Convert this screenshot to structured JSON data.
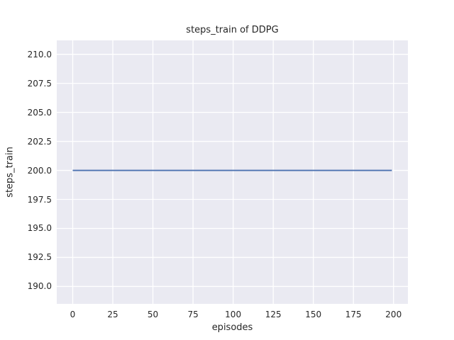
{
  "figure": {
    "background": "#FFFFFF"
  },
  "chart_data": {
    "type": "line",
    "title": "steps_train of DDPG",
    "xlabel": "episodes",
    "ylabel": "steps_train",
    "x": [
      0,
      199
    ],
    "series": [
      {
        "name": "steps_train",
        "values": [
          200,
          200
        ]
      }
    ],
    "line_color": "#4C72B0",
    "line_width": 1.8,
    "xlim": [
      -9.95,
      208.95
    ],
    "ylim": [
      188.5,
      211.2
    ],
    "xticks": {
      "values": [
        0,
        25,
        50,
        75,
        100,
        125,
        150,
        175,
        200
      ],
      "labels": [
        "0",
        "25",
        "50",
        "75",
        "100",
        "125",
        "150",
        "175",
        "200"
      ]
    },
    "yticks": {
      "values": [
        190,
        192.5,
        195,
        197.5,
        200,
        202.5,
        205,
        207.5,
        210
      ],
      "labels": [
        "190.0",
        "192.5",
        "195.0",
        "197.5",
        "200.0",
        "202.5",
        "205.0",
        "207.5",
        "210.0"
      ]
    },
    "grid": true,
    "legend": "none",
    "style": "seaborn-darkgrid",
    "plot_background": "#EAEAF2",
    "grid_color": "#FFFFFF",
    "text_color": "#262626"
  }
}
